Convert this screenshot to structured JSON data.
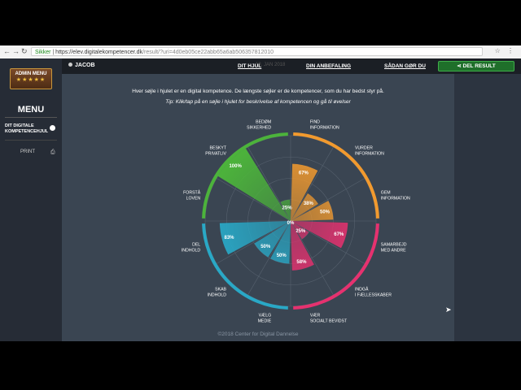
{
  "browser": {
    "secure_label": "Sikker",
    "url_host": "https://elev.digitalekompetencer.dk",
    "url_path": "/result/?uri=4d0eb05ce22abb65a6ab506357812010"
  },
  "sidebar": {
    "admin_title": "ADMIN MENU",
    "admin_stars": "★★★★★",
    "menu_title": "MENU",
    "item_label_1": "DIT DIGITALE",
    "item_label_2": "KOMPETENCEHJUL",
    "print_label": "PRINT"
  },
  "topbar": {
    "user_name": "JACOB",
    "ghost_text": "18. JAN 2018",
    "links": [
      "DIT HJUL",
      "DIN ANBEFALING",
      "SÅDAN GØR DU"
    ],
    "share_label": "DEL RESULT"
  },
  "main": {
    "intro": "Hver søjle i hjulet er en digital kompetence. De længste søjler er de kompetencer, som du har bedst styr på.",
    "tip": "Tip: Klik/tap på en søjle i hjulet for beskrivelse af kompetencen og gå til øvelser",
    "footer": "©2018 Center for Digital Dannelse"
  },
  "colors": {
    "orange": "#f29a2e",
    "pink": "#e6316f",
    "teal": "#29a8c6",
    "green": "#4cb33b"
  },
  "chart_data": {
    "type": "polar-bar",
    "rmax": 100,
    "categories": [
      {
        "label": "FIND INFORMATION",
        "value": 67,
        "color": "#f29a2e"
      },
      {
        "label": "VURDER INFORMATION",
        "value": 38,
        "color": "#f29a2e"
      },
      {
        "label": "GEM INFORMATION",
        "value": 50,
        "color": "#f29a2e"
      },
      {
        "label": "SAMARBEJD MED ANDRE",
        "value": 67,
        "color": "#e6316f"
      },
      {
        "label": "INDGÅ I FÆLLESSKABER",
        "value": 25,
        "color": "#e6316f"
      },
      {
        "label": "VÆR SOCIALT BEVIDST",
        "value": 58,
        "color": "#e6316f"
      },
      {
        "label": "VÆLG MEDIE",
        "value": 50,
        "color": "#29a8c6"
      },
      {
        "label": "SKAB INDHOLD",
        "value": 50,
        "color": "#29a8c6"
      },
      {
        "label": "DEL INDHOLD",
        "value": 83,
        "color": "#29a8c6"
      },
      {
        "label": "FORSTÅ LOVEN",
        "value": 0,
        "color": "#4cb33b"
      },
      {
        "label": "BESKYT PRIVATLIV",
        "value": 100,
        "color": "#4cb33b"
      },
      {
        "label": "BEDØM SIKKERHED",
        "value": 25,
        "color": "#4cb33b"
      }
    ]
  }
}
